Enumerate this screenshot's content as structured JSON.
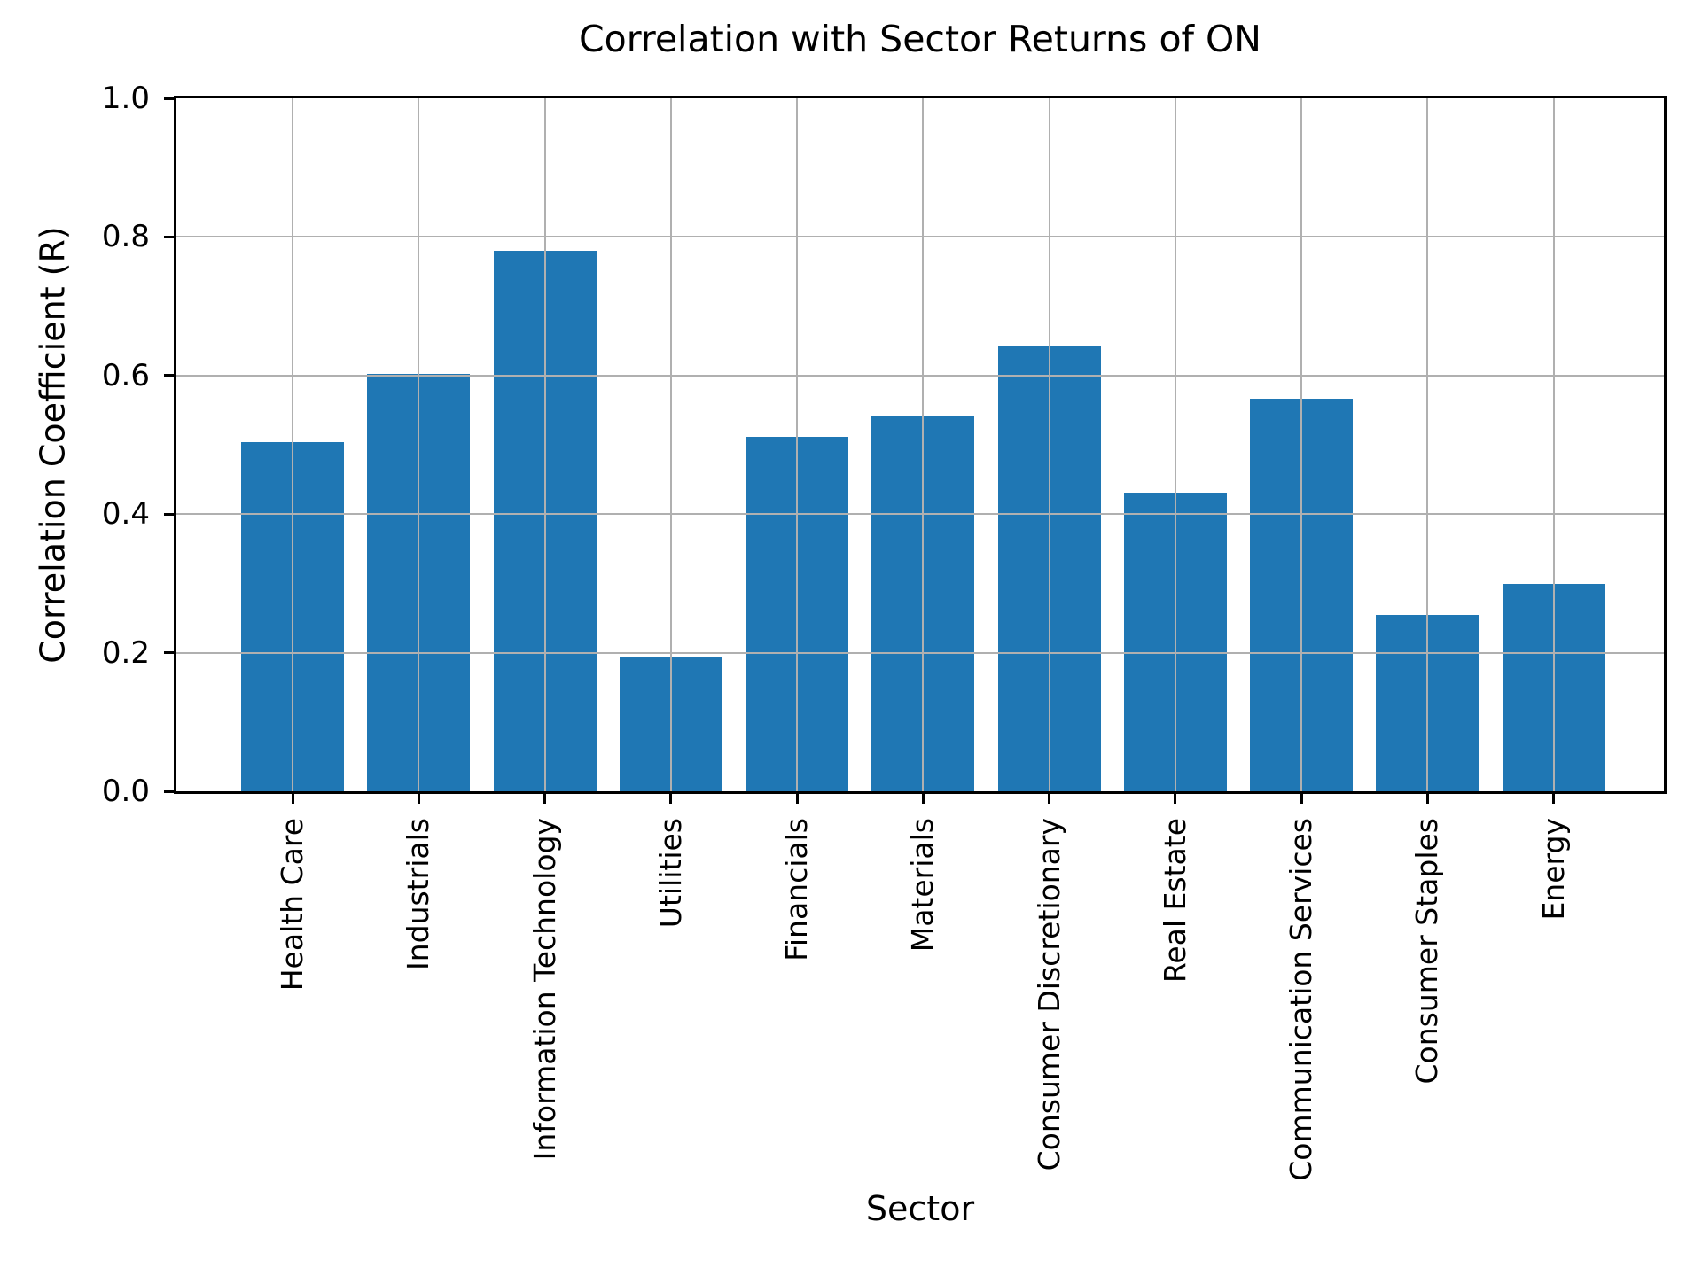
{
  "chart_data": {
    "type": "bar",
    "title": "Correlation with Sector Returns of ON",
    "xlabel": "Sector",
    "ylabel": "Correlation Coefficient (R)",
    "categories": [
      "Health Care",
      "Industrials",
      "Information Technology",
      "Utilities",
      "Financials",
      "Materials",
      "Consumer Discretionary",
      "Real Estate",
      "Communication Services",
      "Consumer Staples",
      "Energy"
    ],
    "values": [
      0.504,
      0.602,
      0.78,
      0.195,
      0.512,
      0.542,
      0.643,
      0.431,
      0.567,
      0.254,
      0.299
    ],
    "ylim": [
      0.0,
      1.0
    ],
    "yticks": [
      0.0,
      0.2,
      0.4,
      0.6,
      0.8,
      1.0
    ],
    "ytick_labels": [
      "0.0",
      "0.2",
      "0.4",
      "0.6",
      "0.8",
      "1.0"
    ],
    "grid": true,
    "grid_over_bars": true,
    "legend": null,
    "bar_color": "#1f77b4",
    "grid_color": "#b0b0b0",
    "spine_color": "#000000",
    "text_color": "#000000"
  }
}
